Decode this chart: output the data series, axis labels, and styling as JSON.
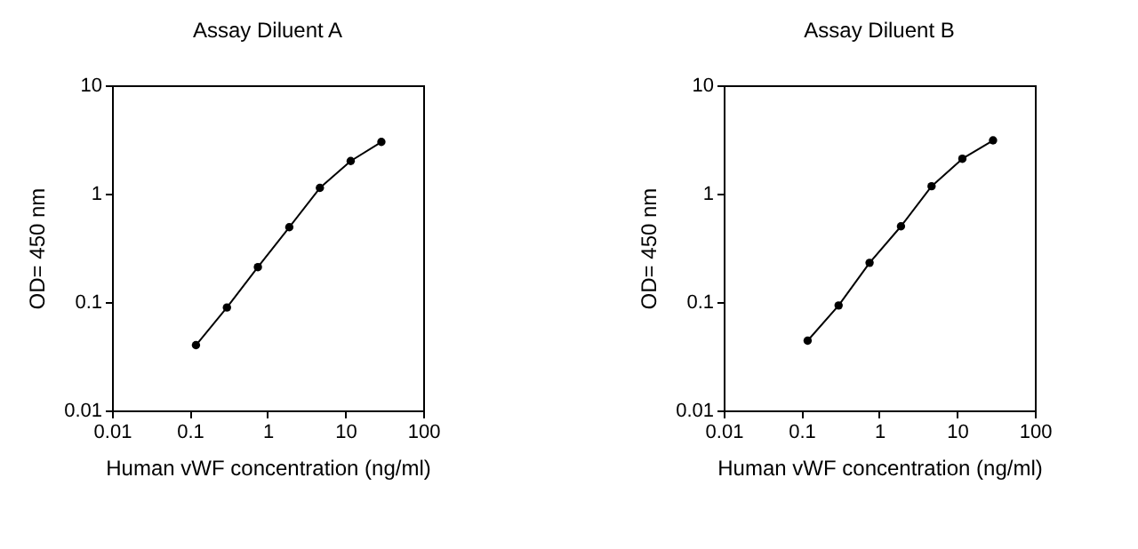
{
  "chart_data": [
    {
      "type": "line",
      "title": "Assay Diluent A",
      "xlabel": "Human vWF concentration (ng/ml)",
      "ylabel": "OD= 450 nm",
      "log": "xy",
      "marker": "circle",
      "grid": false,
      "legend": false,
      "x": [
        0.12,
        0.3,
        0.75,
        1.9,
        4.7,
        11.7,
        29
      ],
      "series": [
        {
          "color": "#000000",
          "values": [
            0.04,
            0.089,
            0.21,
            0.49,
            1.13,
            2.0,
            3.0
          ]
        }
      ],
      "xlim": [
        0.01,
        100
      ],
      "xticks": [
        0.01,
        0.1,
        1,
        10,
        100
      ],
      "ylim": [
        0.01,
        10
      ],
      "yticks": [
        0.01,
        0.1,
        1,
        10
      ]
    },
    {
      "type": "line",
      "title": "Assay Diluent B",
      "xlabel": "Human vWF concentration (ng/ml)",
      "ylabel": "OD= 450 nm",
      "log": "xy",
      "marker": "circle",
      "grid": false,
      "legend": false,
      "x": [
        0.12,
        0.3,
        0.75,
        1.9,
        4.7,
        11.7,
        29
      ],
      "series": [
        {
          "color": "#000000",
          "values": [
            0.044,
            0.093,
            0.23,
            0.5,
            1.17,
            2.1,
            3.1
          ]
        }
      ],
      "xlim": [
        0.01,
        100
      ],
      "xticks": [
        0.01,
        0.1,
        1,
        10,
        100
      ],
      "ylim": [
        0.01,
        10
      ],
      "yticks": [
        0.01,
        0.1,
        1,
        10
      ]
    }
  ]
}
